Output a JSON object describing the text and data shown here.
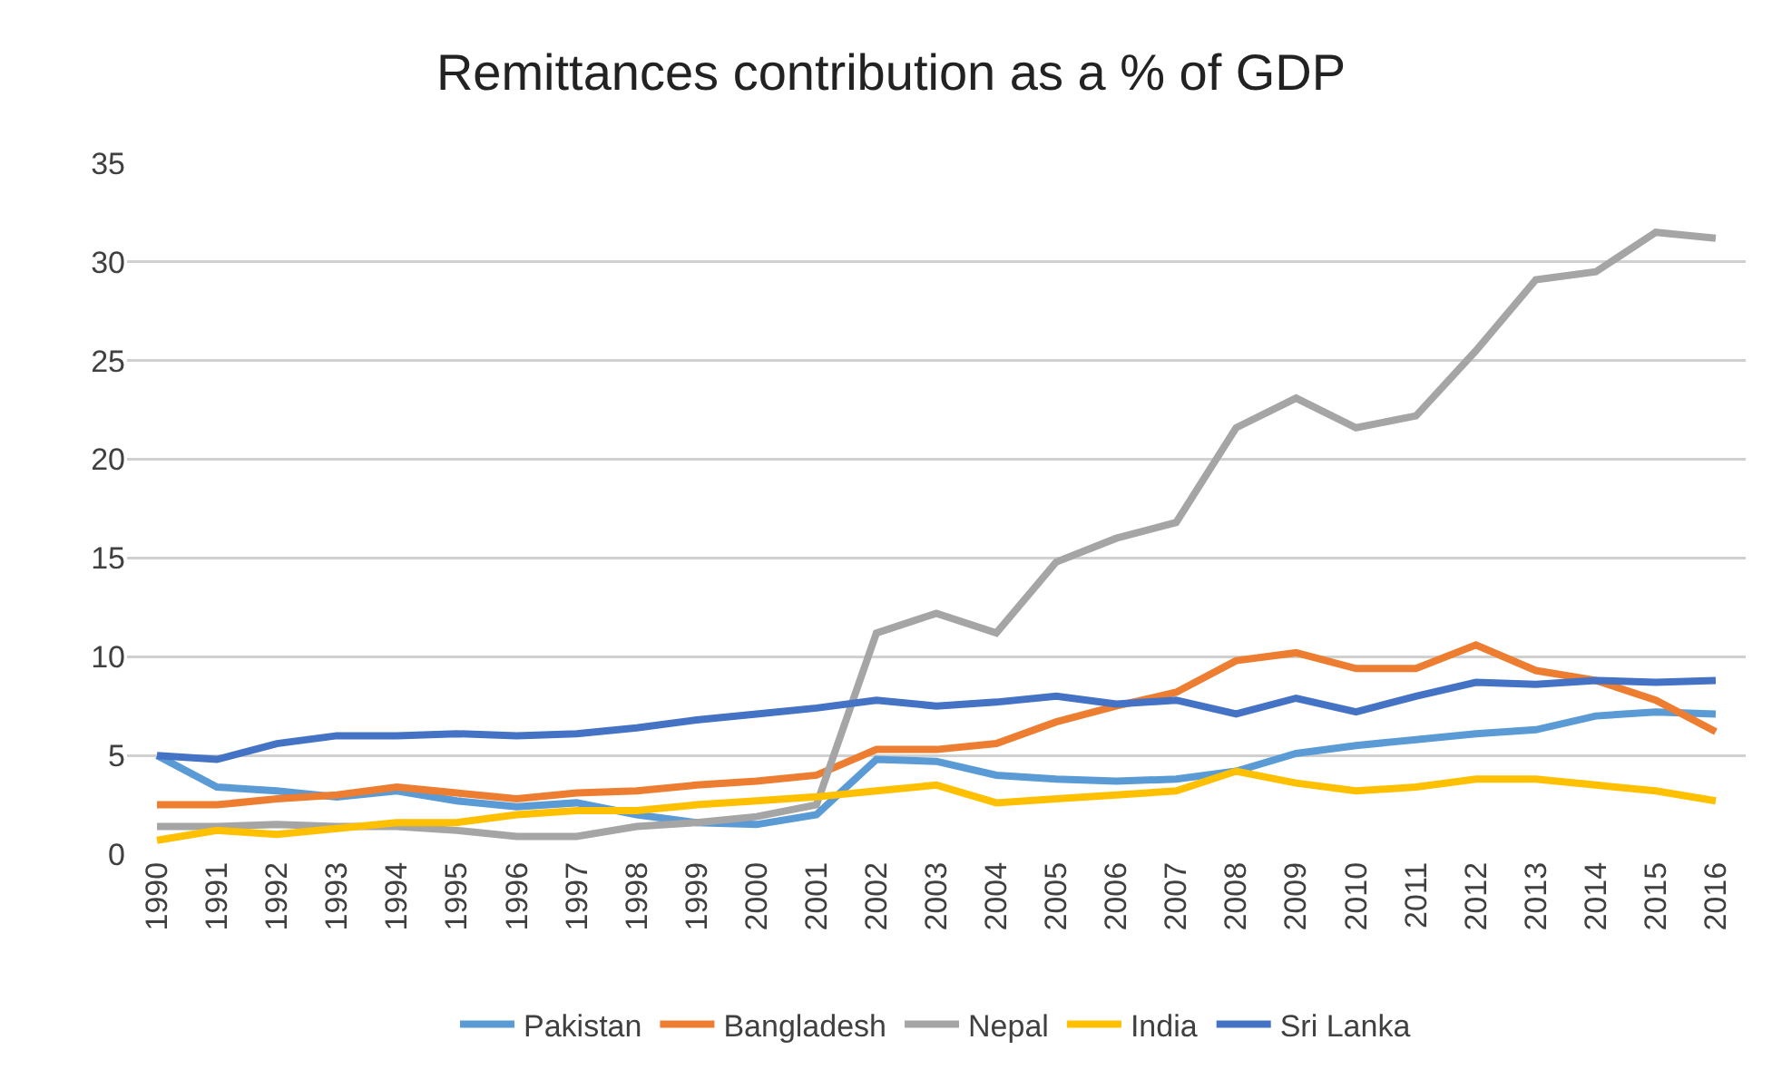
{
  "chart_data": {
    "type": "line",
    "title": "Remittances contribution as a % of GDP",
    "categories": [
      "1990",
      "1991",
      "1992",
      "1993",
      "1994",
      "1995",
      "1996",
      "1997",
      "1998",
      "1999",
      "2000",
      "2001",
      "2002",
      "2003",
      "2004",
      "2005",
      "2006",
      "2007",
      "2008",
      "2009",
      "2010",
      "2011",
      "2012",
      "2013",
      "2014",
      "2015",
      "2016"
    ],
    "series": [
      {
        "name": "Pakistan",
        "color": "#5b9bd5",
        "values": [
          5.0,
          3.4,
          3.2,
          2.9,
          3.2,
          2.7,
          2.4,
          2.6,
          2.0,
          1.6,
          1.5,
          2.0,
          4.8,
          4.7,
          4.0,
          3.8,
          3.7,
          3.8,
          4.2,
          5.1,
          5.5,
          5.8,
          6.1,
          6.3,
          7.0,
          7.2,
          7.1
        ]
      },
      {
        "name": "Bangladesh",
        "color": "#ed7d31",
        "values": [
          2.5,
          2.5,
          2.8,
          3.0,
          3.4,
          3.1,
          2.8,
          3.1,
          3.2,
          3.5,
          3.7,
          4.0,
          5.3,
          5.3,
          5.6,
          6.7,
          7.5,
          8.2,
          9.8,
          10.2,
          9.4,
          9.4,
          10.6,
          9.3,
          8.8,
          7.8,
          6.2
        ]
      },
      {
        "name": "Nepal",
        "color": "#a5a5a5",
        "values": [
          1.4,
          1.4,
          1.5,
          1.4,
          1.4,
          1.2,
          0.9,
          0.9,
          1.4,
          1.6,
          1.9,
          2.5,
          11.2,
          12.2,
          11.2,
          14.8,
          16.0,
          16.8,
          21.6,
          23.1,
          21.6,
          22.2,
          25.5,
          29.1,
          29.5,
          31.5,
          31.2
        ]
      },
      {
        "name": "India",
        "color": "#ffc000",
        "values": [
          0.7,
          1.2,
          1.0,
          1.3,
          1.6,
          1.6,
          2.0,
          2.2,
          2.2,
          2.5,
          2.7,
          2.9,
          3.2,
          3.5,
          2.6,
          2.8,
          3.0,
          3.2,
          4.2,
          3.6,
          3.2,
          3.4,
          3.8,
          3.8,
          3.5,
          3.2,
          2.7
        ]
      },
      {
        "name": "Sri Lanka",
        "color": "#4472c4",
        "values": [
          5.0,
          4.8,
          5.6,
          6.0,
          6.0,
          6.1,
          6.0,
          6.1,
          6.4,
          6.8,
          7.1,
          7.4,
          7.8,
          7.5,
          7.7,
          8.0,
          7.6,
          7.8,
          7.1,
          7.9,
          7.2,
          8.0,
          8.7,
          8.6,
          8.8,
          8.7,
          8.8
        ]
      }
    ],
    "ylim": [
      0,
      35
    ],
    "yticks": [
      0,
      5,
      10,
      15,
      20,
      25,
      30,
      35
    ],
    "grid": "y",
    "legend": "bottom",
    "marker": "none",
    "line_style": "solid"
  }
}
